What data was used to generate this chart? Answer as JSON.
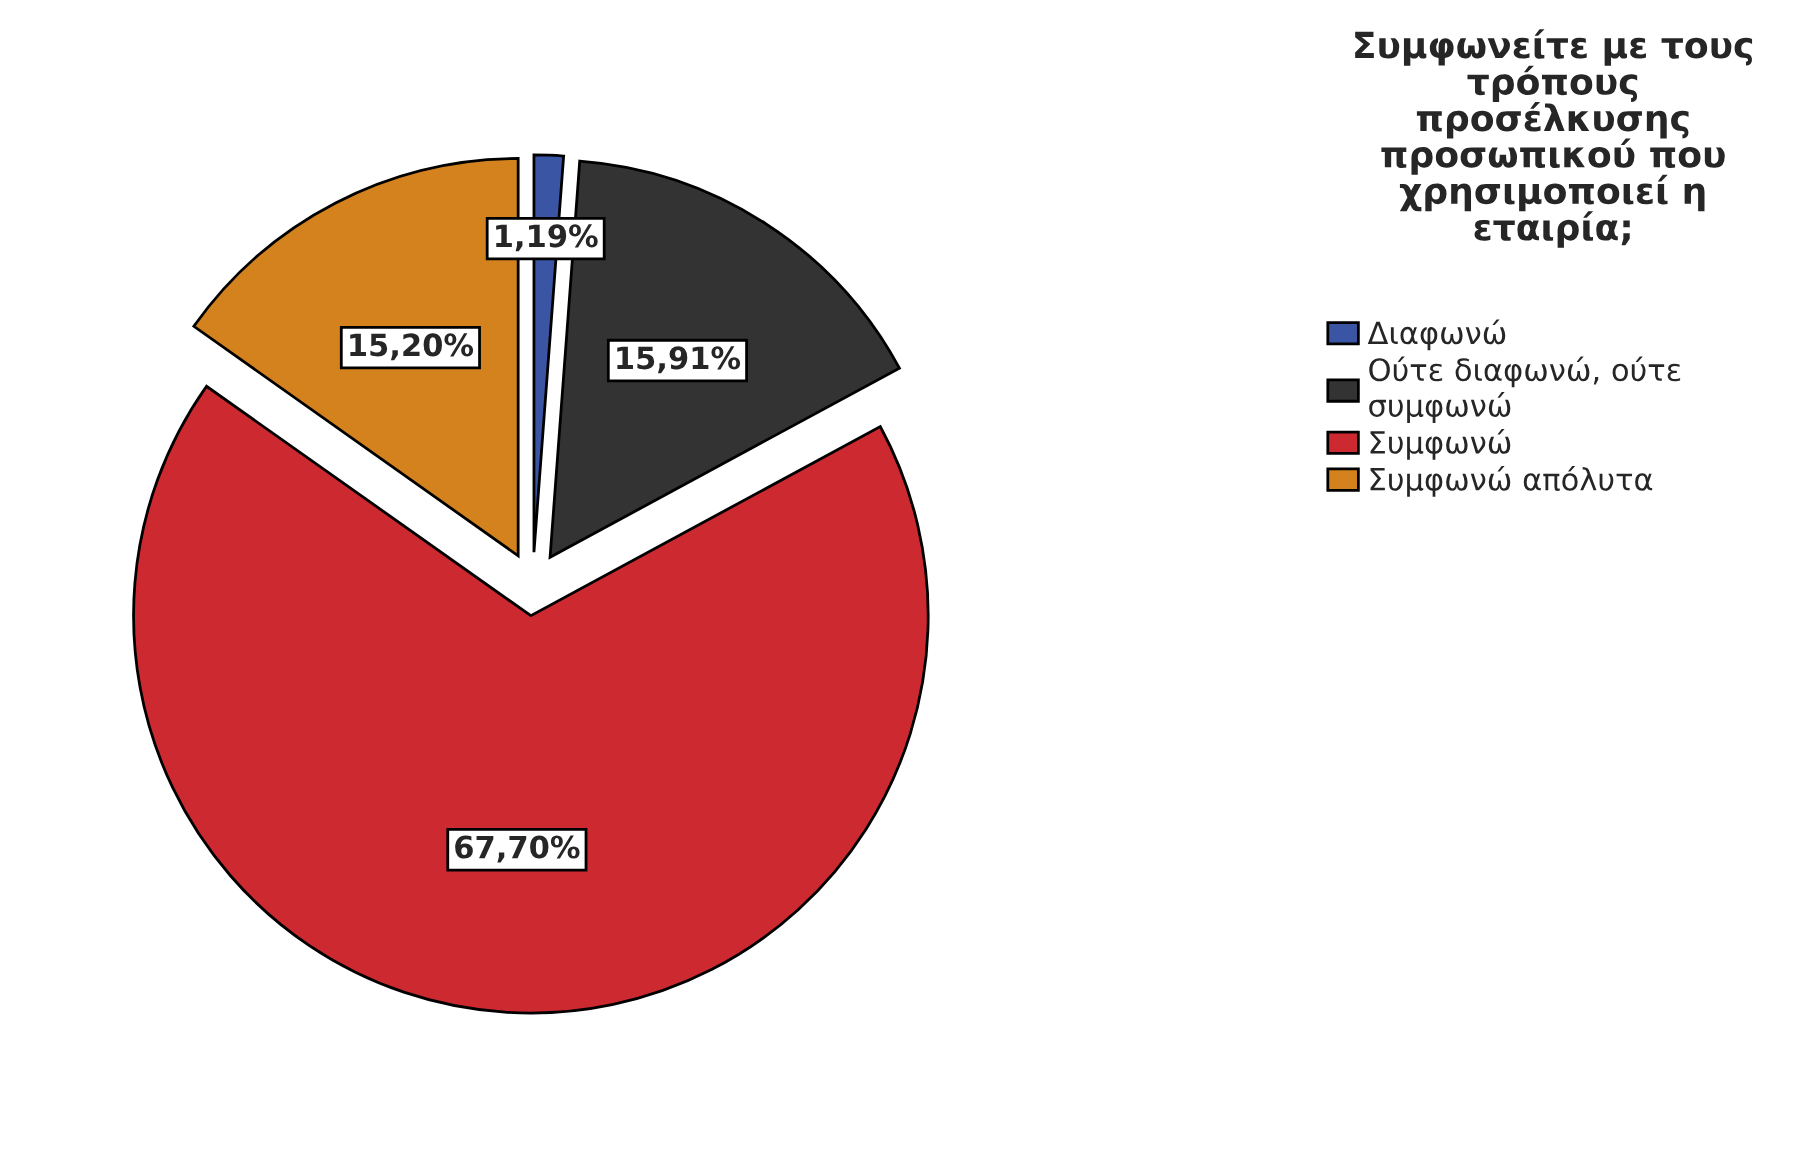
{
  "chart_data": {
    "type": "pie",
    "title": "Συμφωνείτε με τους\nτρόπους\nπροσέλκυσης\nπροσωπικού που\nχρησιμοποιεί η\nεταιρία;",
    "categories": [
      "Διαφωνώ",
      "Ούτε διαφωνώ, ούτε\nσυμφωνώ",
      "Συμφωνώ",
      "Συμφωνώ απόλυτα"
    ],
    "values": [
      1.19,
      15.91,
      67.7,
      15.2
    ],
    "colors": [
      "#3a55a4",
      "#333333",
      "#cc2a30",
      "#d4821e"
    ],
    "value_labels": [
      "1,19%",
      "15,91%",
      "67,70%",
      "15,20%"
    ],
    "legend": "right"
  }
}
